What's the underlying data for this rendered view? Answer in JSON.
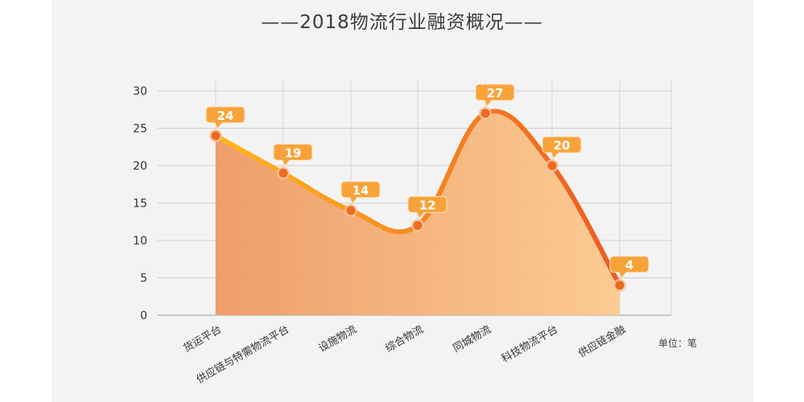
{
  "chart_data": {
    "type": "area",
    "title": "——2018物流行业融资概况——",
    "unit_label": "单位：笔",
    "categories": [
      "货运平台",
      "供应链与特需物流平台",
      "设施物流",
      "综合物流",
      "同城物流",
      "科技物流平台",
      "供应链金融"
    ],
    "values": [
      24,
      19,
      14,
      12,
      27,
      20,
      4
    ],
    "ylim": [
      0,
      30
    ],
    "yticks": [
      0,
      5,
      10,
      15,
      20,
      25,
      30
    ],
    "grid": true,
    "colors": {
      "line_start": "#ffb81c",
      "line_end": "#ee5a24",
      "fill_start": "#ee9a64",
      "fill_end": "#fcc98e",
      "marker": "#ee6a1e",
      "label_bg": "#f7a33a"
    }
  }
}
